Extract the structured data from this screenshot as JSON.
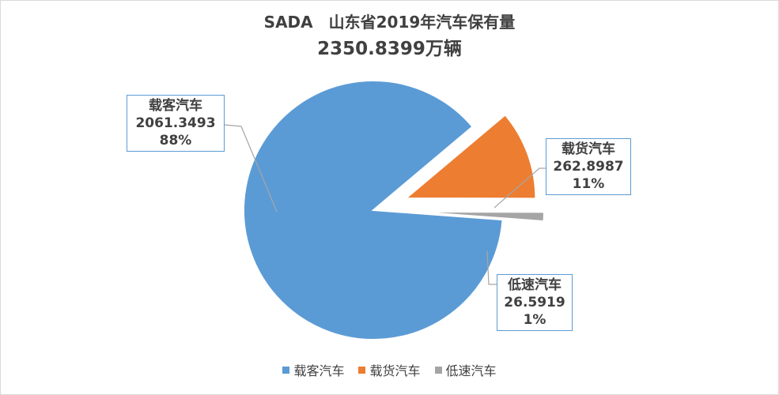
{
  "title_line1": "SADA　山东省2019年汽车保有量",
  "title_line2": "2350.8399万辆",
  "chart_data": {
    "type": "pie",
    "slices": [
      {
        "name": "载客汽车",
        "value": 2061.3493,
        "percent": "88%",
        "color": "#5b9bd5",
        "value_label": "2061.3493"
      },
      {
        "name": "载货汽车",
        "value": 262.8987,
        "percent": "11%",
        "color": "#ed7d31",
        "value_label": "262.8987"
      },
      {
        "name": "低速汽车",
        "value": 26.5919,
        "percent": "1%",
        "color": "#a5a5a5",
        "value_label": "26.5919"
      }
    ],
    "legend_position": "bottom",
    "exploded": true
  }
}
